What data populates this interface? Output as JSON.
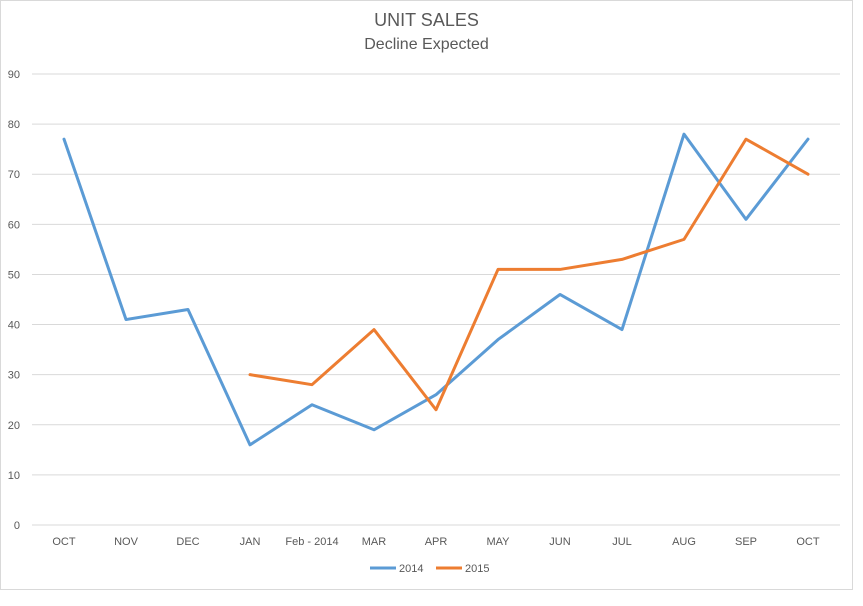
{
  "chart_data": {
    "type": "line",
    "title": "UNIT SALES",
    "subtitle": "Decline Expected",
    "xlabel": "",
    "ylabel": "",
    "categories": [
      "OCT",
      "NOV",
      "DEC",
      "JAN",
      "Feb - 2014",
      "MAR",
      "APR",
      "MAY",
      "JUN",
      "JUL",
      "AUG",
      "SEP",
      "OCT"
    ],
    "ylim": [
      0,
      90
    ],
    "yticks": [
      0,
      10,
      20,
      30,
      40,
      50,
      60,
      70,
      80,
      90
    ],
    "grid": true,
    "legend": "bottom",
    "series": [
      {
        "name": "2014",
        "color": "#5b9bd5",
        "values": [
          77,
          41,
          43,
          16,
          24,
          19,
          26,
          37,
          46,
          39,
          78,
          61,
          77
        ]
      },
      {
        "name": "2015",
        "color": "#ed7d31",
        "values": [
          null,
          null,
          null,
          30,
          28,
          39,
          23,
          51,
          51,
          53,
          57,
          77,
          70
        ]
      }
    ]
  }
}
